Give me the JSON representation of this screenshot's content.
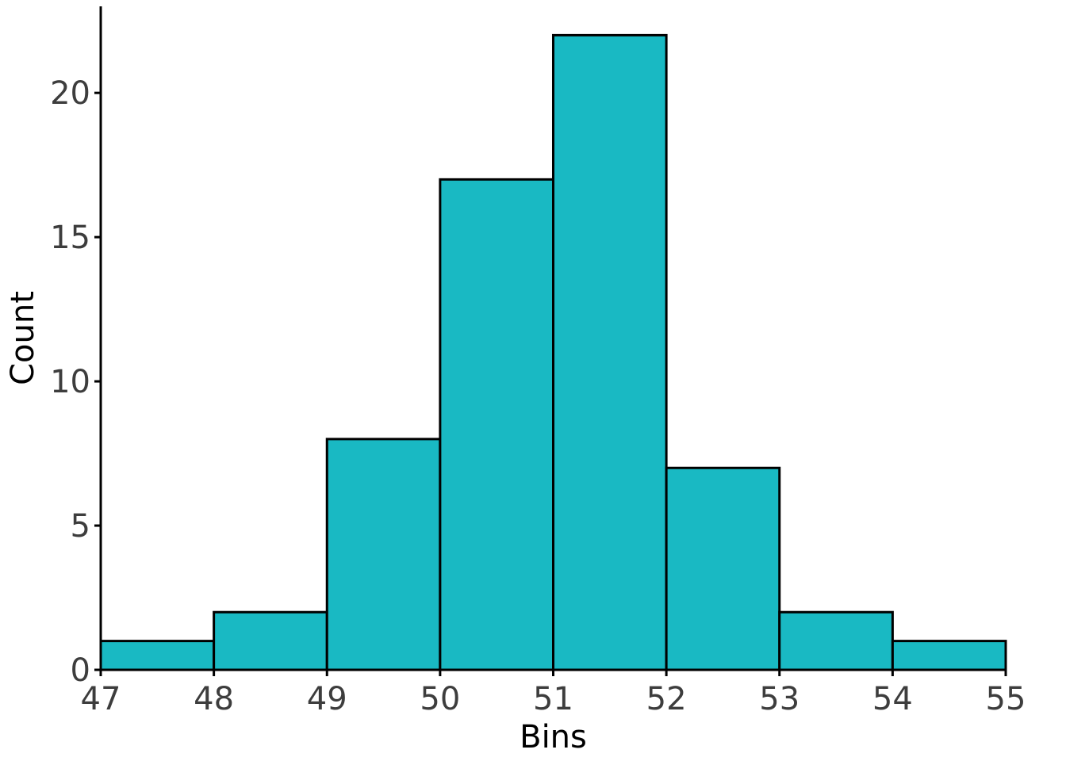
{
  "chart_data": {
    "type": "bar",
    "subtype": "histogram",
    "bin_edges": [
      47,
      48,
      49,
      50,
      51,
      52,
      53,
      54,
      55
    ],
    "values": [
      1,
      2,
      8,
      17,
      22,
      7,
      2,
      1
    ],
    "xlabel": "Bins",
    "ylabel": "Count",
    "xlim": [
      47,
      55
    ],
    "ylim": [
      0,
      23
    ],
    "x_ticks": [
      47,
      48,
      49,
      50,
      51,
      52,
      53,
      54,
      55
    ],
    "y_ticks": [
      0,
      5,
      10,
      15,
      20
    ],
    "grid": false,
    "legend": "none",
    "colors": {
      "bar_fill": "#19B9C3",
      "bar_edge": "#000000",
      "tick_text": "#3d3d3d"
    }
  }
}
